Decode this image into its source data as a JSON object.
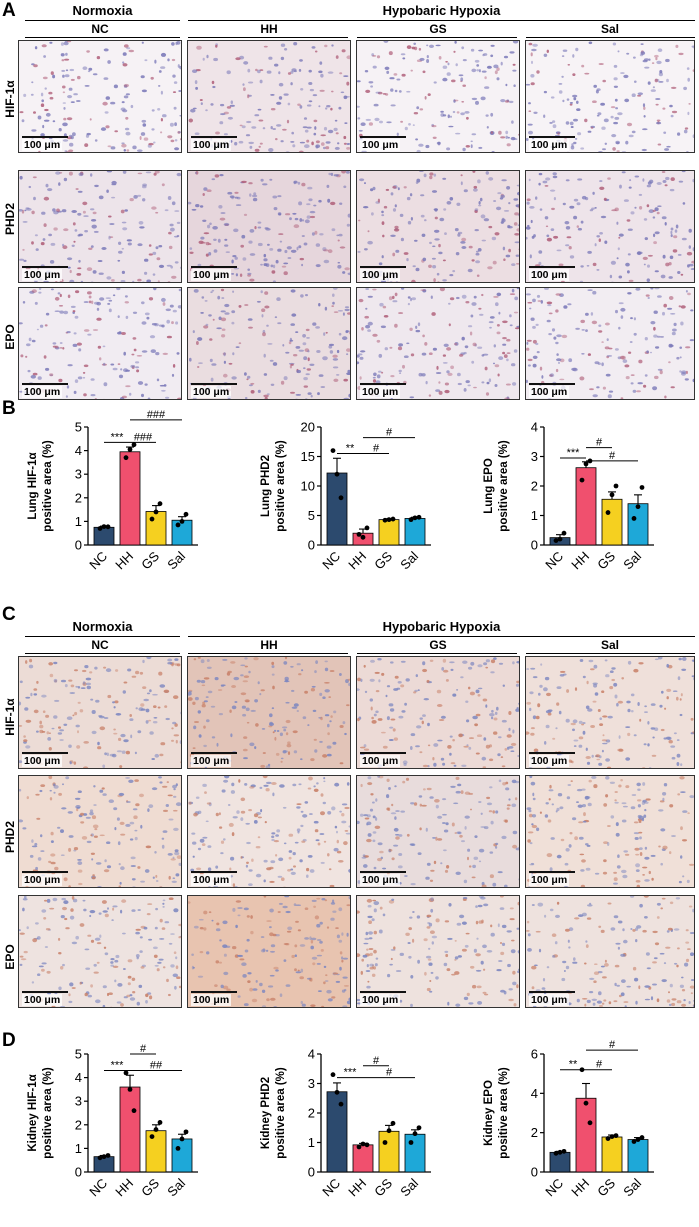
{
  "panel_A": {
    "letter": "A",
    "groups": [
      "Normoxia",
      "Hypobaric Hypoxia"
    ],
    "columns": [
      "NC",
      "HH",
      "GS",
      "Sal"
    ],
    "rows": [
      "HIF-1α",
      "PHD2",
      "EPO"
    ],
    "scale_label": "100 μm",
    "tile_colors": {
      "HIF-1α": [
        "#f6f2f5",
        "#efe4e8",
        "#f6f2f5",
        "#f7f3f6"
      ],
      "PHD2": [
        "#ede4ea",
        "#e6d6dc",
        "#ecdee2",
        "#eee4ea"
      ],
      "EPO": [
        "#f1ecf2",
        "#eadde0",
        "#efe8ee",
        "#f2edf2"
      ]
    }
  },
  "panel_C": {
    "letter": "C",
    "groups": [
      "Normoxia",
      "Hypobaric Hypoxia"
    ],
    "columns": [
      "NC",
      "HH",
      "GS",
      "Sal"
    ],
    "rows": [
      "HIF-1α",
      "PHD2",
      "EPO"
    ],
    "scale_label": "100 μm",
    "tile_colors": {
      "HIF-1α": [
        "#ecdcd6",
        "#e2c4b8",
        "#ecdad6",
        "#efe0da"
      ],
      "PHD2": [
        "#efdcd2",
        "#f0e4e0",
        "#e8dcdc",
        "#f0e0d8"
      ],
      "EPO": [
        "#eee3e0",
        "#e8c4b0",
        "#eee2de",
        "#eee2de"
      ]
    }
  },
  "panel_B": {
    "letter": "B"
  },
  "panel_D": {
    "letter": "D"
  },
  "chart_data": [
    {
      "type": "bar",
      "panel": "B",
      "ylabel": [
        "Lung HIF-1α",
        "positive area (%)"
      ],
      "categories": [
        "NC",
        "HH",
        "GS",
        "Sal"
      ],
      "values": [
        0.75,
        3.95,
        1.42,
        1.05
      ],
      "errors": [
        0.05,
        0.2,
        0.25,
        0.15
      ],
      "points": [
        [
          0.7,
          0.78,
          0.77
        ],
        [
          3.7,
          4.05,
          4.25
        ],
        [
          1.1,
          1.4,
          1.75
        ],
        [
          0.85,
          1.0,
          1.3
        ]
      ],
      "ylim": [
        0,
        5
      ],
      "yticks": [
        0,
        1,
        2,
        3,
        4,
        5
      ],
      "colors": [
        "#2c4a6e",
        "#f0506e",
        "#f5d020",
        "#1ea8d8"
      ],
      "annotations": [
        {
          "from": 0,
          "to": 1,
          "label": "***",
          "y": 4.35
        },
        {
          "from": 1,
          "to": 2,
          "label": "###",
          "y": 4.35
        },
        {
          "from": 1,
          "to": 3,
          "label": "###",
          "y": 5.3
        }
      ]
    },
    {
      "type": "bar",
      "panel": "B",
      "ylabel": [
        "Lung PHD2",
        "positive area (%)"
      ],
      "categories": [
        "NC",
        "HH",
        "GS",
        "Sal"
      ],
      "values": [
        12.2,
        2.0,
        4.3,
        4.5
      ],
      "errors": [
        2.5,
        0.7,
        0.15,
        0.2
      ],
      "points": [
        [
          16.0,
          12.0,
          8.0
        ],
        [
          1.8,
          1.3,
          2.9
        ],
        [
          4.2,
          4.3,
          4.4
        ],
        [
          4.3,
          4.6,
          4.7
        ]
      ],
      "ylim": [
        0,
        20
      ],
      "yticks": [
        0,
        5,
        10,
        15,
        20
      ],
      "colors": [
        "#2c4a6e",
        "#f0506e",
        "#f5d020",
        "#1ea8d8"
      ],
      "annotations": [
        {
          "from": 0,
          "to": 1,
          "label": "**",
          "y": 15.5
        },
        {
          "from": 1,
          "to": 2,
          "label": "#",
          "y": 15.5
        },
        {
          "from": 1,
          "to": 3,
          "label": "#",
          "y": 18.2
        }
      ]
    },
    {
      "type": "bar",
      "panel": "B",
      "ylabel": [
        "Lung EPO",
        "positive area (%)"
      ],
      "categories": [
        "NC",
        "HH",
        "GS",
        "Sal"
      ],
      "values": [
        0.25,
        2.62,
        1.55,
        1.4
      ],
      "errors": [
        0.1,
        0.2,
        0.25,
        0.3
      ],
      "points": [
        [
          0.15,
          0.2,
          0.4
        ],
        [
          2.2,
          2.75,
          2.85
        ],
        [
          1.1,
          1.7,
          2.0
        ],
        [
          0.9,
          1.3,
          1.95
        ]
      ],
      "ylim": [
        0,
        4
      ],
      "yticks": [
        0,
        1,
        2,
        3,
        4
      ],
      "colors": [
        "#2c4a6e",
        "#f0506e",
        "#f5d020",
        "#1ea8d8"
      ],
      "annotations": [
        {
          "from": 0,
          "to": 1,
          "label": "***",
          "y": 2.95
        },
        {
          "from": 1,
          "to": 2,
          "label": "#",
          "y": 3.3
        },
        {
          "from": 1,
          "to": 3,
          "label": "#",
          "y": 2.85
        }
      ]
    },
    {
      "type": "bar",
      "panel": "D",
      "ylabel": [
        "Kidney HIF-1α",
        "positive area (%)"
      ],
      "categories": [
        "NC",
        "HH",
        "GS",
        "Sal"
      ],
      "values": [
        0.65,
        3.6,
        1.75,
        1.4
      ],
      "errors": [
        0.05,
        0.5,
        0.25,
        0.2
      ],
      "points": [
        [
          0.6,
          0.65,
          0.7
        ],
        [
          4.2,
          3.5,
          2.6
        ],
        [
          1.5,
          1.8,
          2.1
        ],
        [
          1.0,
          1.4,
          1.7
        ]
      ],
      "ylim": [
        0,
        5
      ],
      "yticks": [
        0,
        1,
        2,
        3,
        4,
        5
      ],
      "colors": [
        "#2c4a6e",
        "#f0506e",
        "#f5d020",
        "#1ea8d8"
      ],
      "annotations": [
        {
          "from": 0,
          "to": 1,
          "label": "***",
          "y": 4.3
        },
        {
          "from": 1,
          "to": 2,
          "label": "#",
          "y": 5.0
        },
        {
          "from": 1,
          "to": 3,
          "label": "##",
          "y": 4.3
        }
      ]
    },
    {
      "type": "bar",
      "panel": "D",
      "ylabel": [
        "Kidney PHD2",
        "positive area (%)"
      ],
      "categories": [
        "NC",
        "HH",
        "GS",
        "Sal"
      ],
      "values": [
        2.72,
        0.92,
        1.38,
        1.28
      ],
      "errors": [
        0.3,
        0.05,
        0.2,
        0.15
      ],
      "points": [
        [
          3.3,
          2.7,
          2.3
        ],
        [
          0.85,
          0.95,
          0.92
        ],
        [
          1.0,
          1.4,
          1.65
        ],
        [
          1.0,
          1.3,
          1.5
        ]
      ],
      "ylim": [
        0,
        4
      ],
      "yticks": [
        0,
        1,
        2,
        3,
        4
      ],
      "colors": [
        "#2c4a6e",
        "#f0506e",
        "#f5d020",
        "#1ea8d8"
      ],
      "annotations": [
        {
          "from": 0,
          "to": 1,
          "label": "***",
          "y": 3.2
        },
        {
          "from": 1,
          "to": 2,
          "label": "#",
          "y": 3.6
        },
        {
          "from": 1,
          "to": 3,
          "label": "#",
          "y": 3.2
        }
      ]
    },
    {
      "type": "bar",
      "panel": "D",
      "ylabel": [
        "Kidney EPO",
        "positive area (%)"
      ],
      "categories": [
        "NC",
        "HH",
        "GS",
        "Sal"
      ],
      "values": [
        1.0,
        3.75,
        1.78,
        1.65
      ],
      "errors": [
        0.05,
        0.75,
        0.1,
        0.1
      ],
      "points": [
        [
          0.95,
          1.0,
          1.05
        ],
        [
          5.2,
          3.5,
          2.5
        ],
        [
          1.7,
          1.8,
          1.85
        ],
        [
          1.55,
          1.65,
          1.75
        ]
      ],
      "ylim": [
        0,
        6
      ],
      "yticks": [
        0,
        2,
        4,
        6
      ],
      "colors": [
        "#2c4a6e",
        "#f0506e",
        "#f5d020",
        "#1ea8d8"
      ],
      "annotations": [
        {
          "from": 0,
          "to": 1,
          "label": "**",
          "y": 5.2
        },
        {
          "from": 1,
          "to": 2,
          "label": "#",
          "y": 5.2
        },
        {
          "from": 1,
          "to": 3,
          "label": "#",
          "y": 6.2
        }
      ]
    }
  ]
}
